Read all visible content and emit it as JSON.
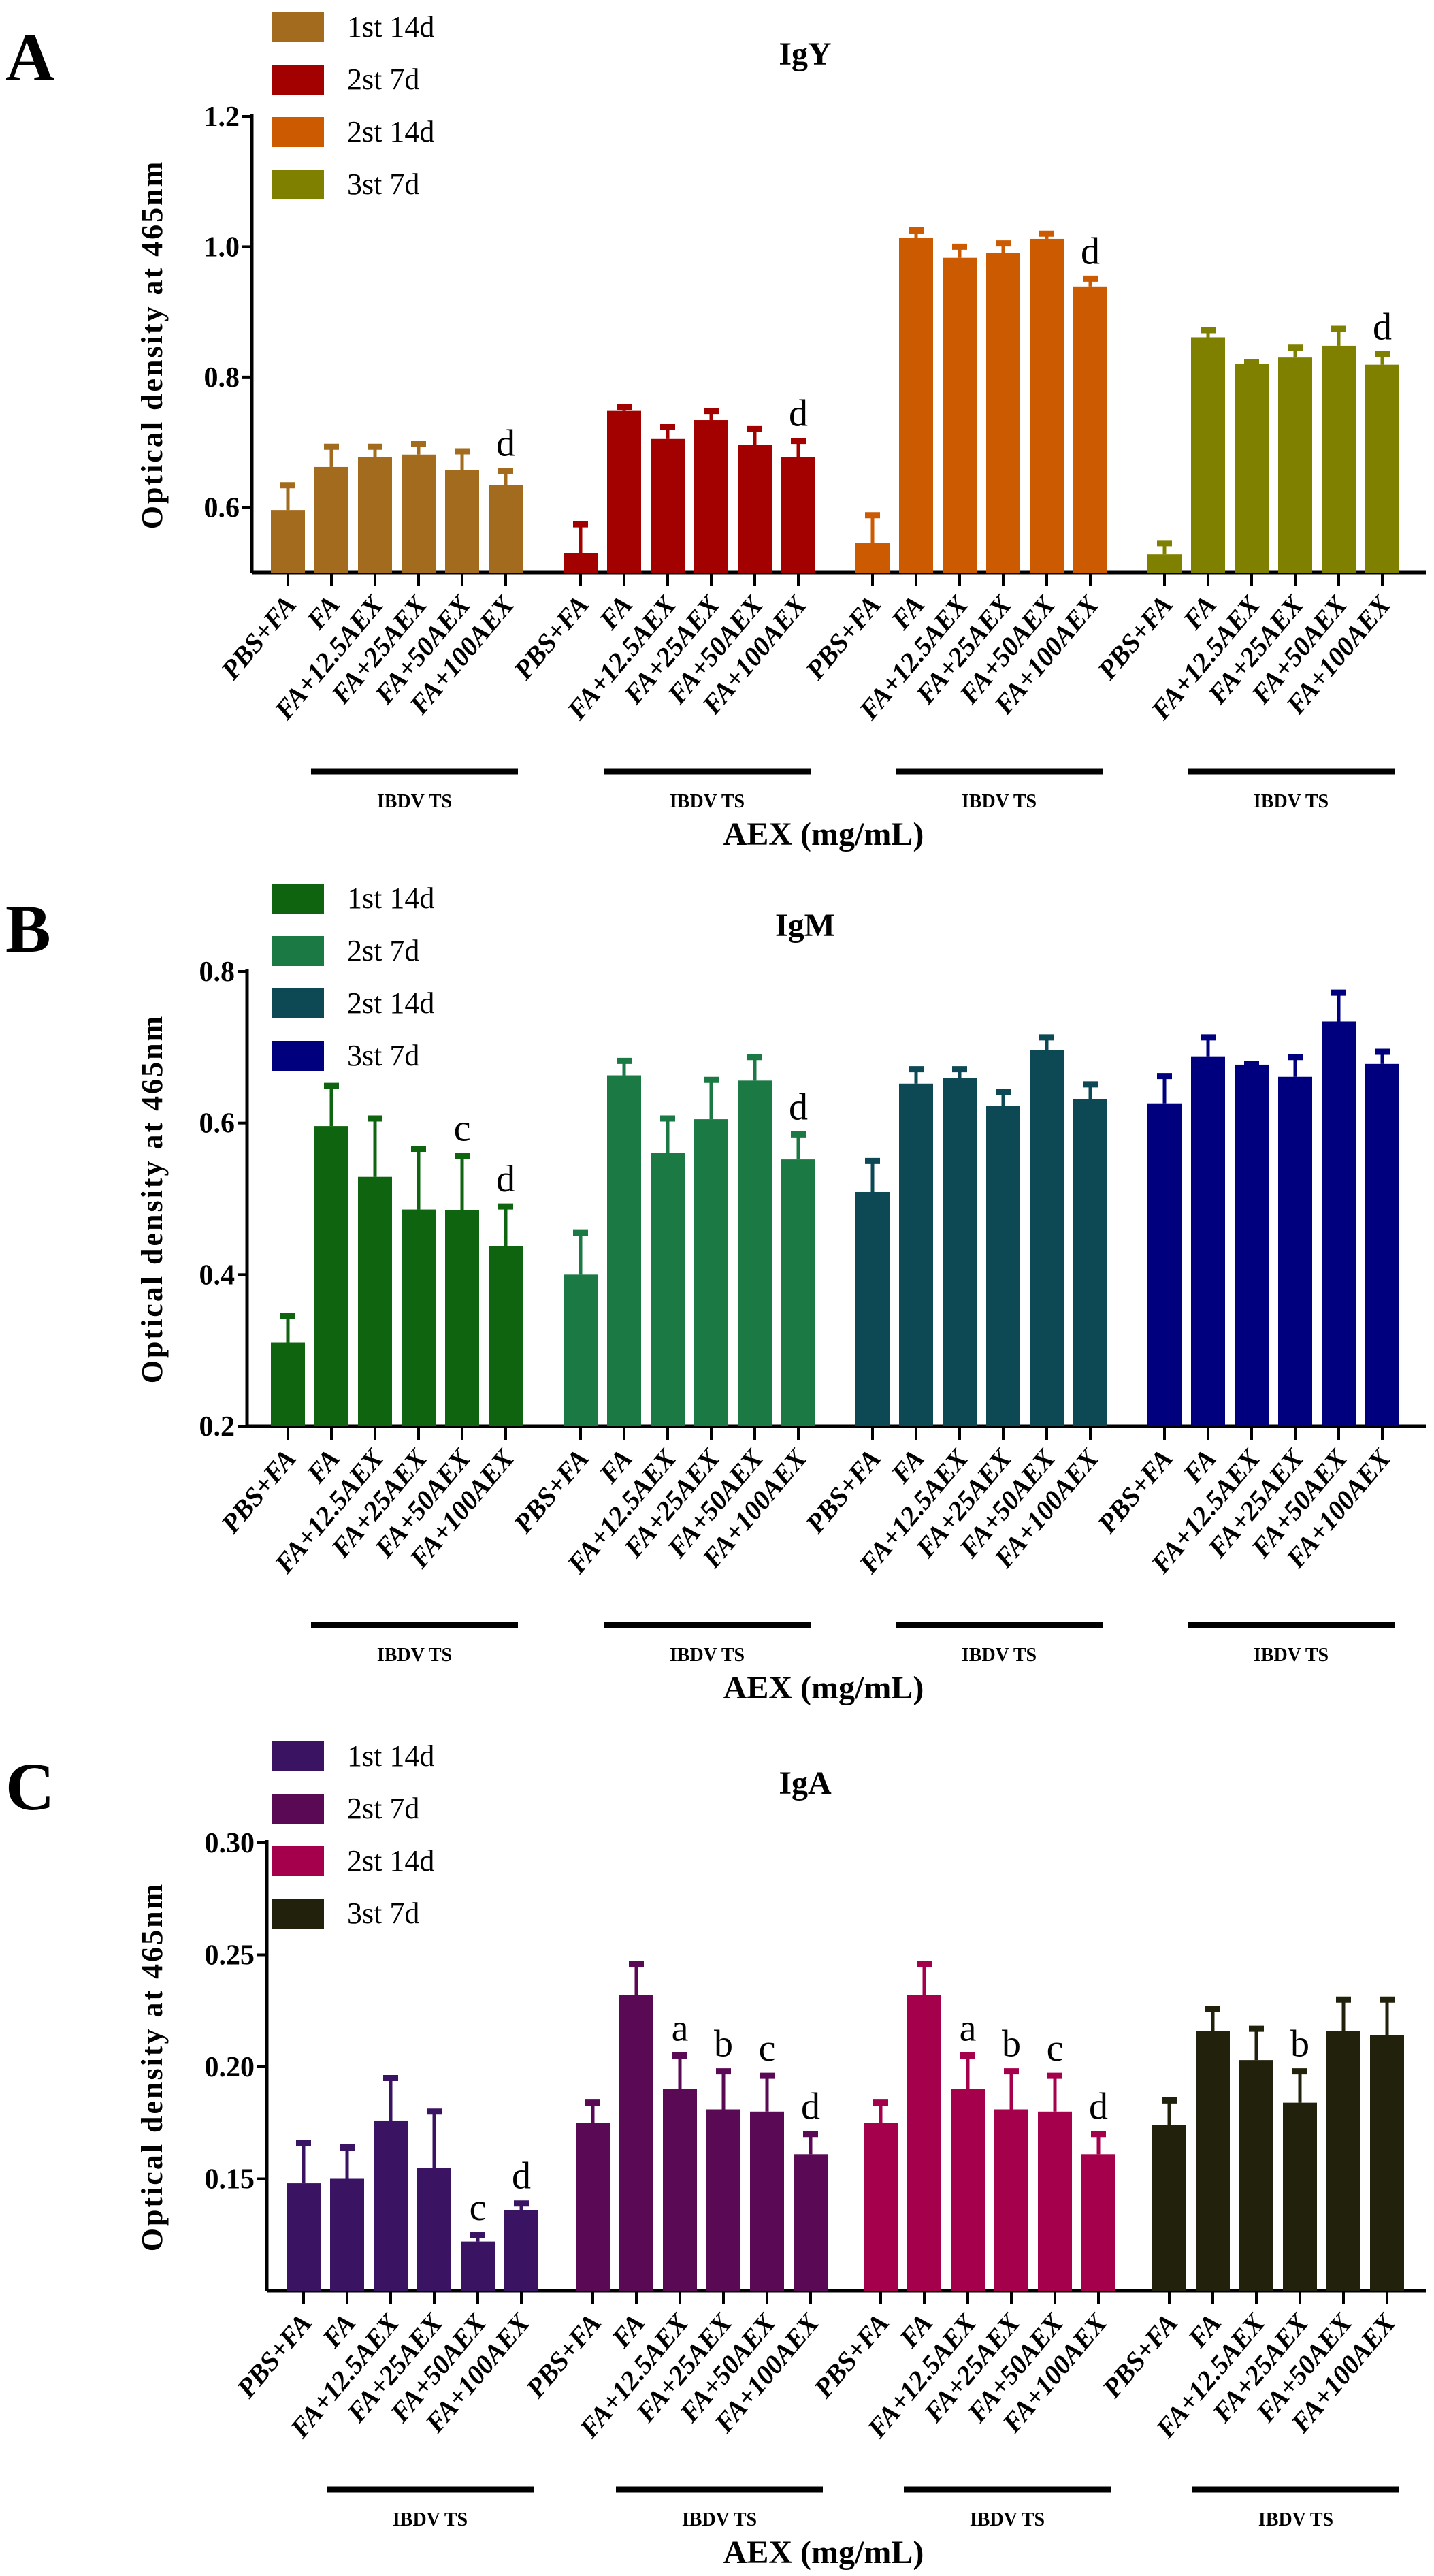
{
  "chart_data": [
    {
      "type": "bar",
      "panel_label": "A",
      "title": "IgY",
      "ylabel": "Optical density at 465nm",
      "xlabel": "AEX (mg/mL)",
      "ylim": [
        0.5,
        1.2
      ],
      "yticks": [
        0.6,
        0.8,
        1.0,
        1.2
      ],
      "ytick_labels": [
        "0.6",
        "0.8",
        "1.0",
        "1.2"
      ],
      "categories": [
        "PBS+FA",
        "FA",
        "FA+12.5AEX",
        "FA+25AEX",
        "FA+50AEX",
        "FA+100AEX"
      ],
      "group_label": "IBDV TS",
      "series": [
        {
          "name": "1st 14d",
          "color": "#a36b1e",
          "values": [
            0.596,
            0.662,
            0.677,
            0.681,
            0.657,
            0.634
          ],
          "errors": [
            0.038,
            0.031,
            0.016,
            0.016,
            0.029,
            0.022
          ]
        },
        {
          "name": "2st 7d",
          "color": "#a30000",
          "values": [
            0.53,
            0.748,
            0.705,
            0.734,
            0.696,
            0.677
          ],
          "errors": [
            0.044,
            0.006,
            0.018,
            0.014,
            0.024,
            0.025
          ]
        },
        {
          "name": "2st 14d",
          "color": "#cc5a00",
          "values": [
            0.545,
            1.014,
            0.983,
            0.991,
            1.012,
            0.939
          ],
          "errors": [
            0.043,
            0.011,
            0.017,
            0.014,
            0.008,
            0.012
          ]
        },
        {
          "name": "3st 7d",
          "color": "#7f7f00",
          "values": [
            0.528,
            0.861,
            0.82,
            0.83,
            0.848,
            0.819
          ],
          "errors": [
            0.017,
            0.011,
            0.003,
            0.015,
            0.026,
            0.016
          ]
        }
      ],
      "annotations": [
        {
          "series": 0,
          "category": 5,
          "text": "d"
        },
        {
          "series": 1,
          "category": 5,
          "text": "d"
        },
        {
          "series": 2,
          "category": 5,
          "text": "d"
        },
        {
          "series": 3,
          "category": 5,
          "text": "d"
        }
      ]
    },
    {
      "type": "bar",
      "panel_label": "B",
      "title": "IgM",
      "ylabel": "Optical density at 465nm",
      "xlabel": "AEX (mg/mL)",
      "ylim": [
        0.2,
        0.8
      ],
      "yticks": [
        0.2,
        0.4,
        0.6,
        0.8
      ],
      "ytick_labels": [
        "0.2",
        "0.4",
        "0.6",
        "0.8"
      ],
      "categories": [
        "PBS+FA",
        "FA",
        "FA+12.5AEX",
        "FA+25AEX",
        "FA+50AEX",
        "FA+100AEX"
      ],
      "group_label": "IBDV TS",
      "series": [
        {
          "name": "1st 14d",
          "color": "#0f640f",
          "values": [
            0.31,
            0.596,
            0.529,
            0.486,
            0.485,
            0.438
          ],
          "errors": [
            0.036,
            0.053,
            0.077,
            0.08,
            0.072,
            0.052
          ]
        },
        {
          "name": "2st 7d",
          "color": "#1b7a44",
          "values": [
            0.4,
            0.663,
            0.561,
            0.605,
            0.656,
            0.552
          ],
          "errors": [
            0.055,
            0.019,
            0.045,
            0.052,
            0.031,
            0.033
          ]
        },
        {
          "name": "2st 14d",
          "color": "#0d4855",
          "values": [
            0.509,
            0.652,
            0.659,
            0.623,
            0.696,
            0.632
          ],
          "errors": [
            0.041,
            0.019,
            0.012,
            0.018,
            0.017,
            0.019
          ]
        },
        {
          "name": "3st 7d",
          "color": "#00007f",
          "values": [
            0.626,
            0.688,
            0.677,
            0.661,
            0.734,
            0.678
          ],
          "errors": [
            0.036,
            0.025,
            0.001,
            0.026,
            0.038,
            0.016
          ]
        }
      ],
      "annotations": [
        {
          "series": 0,
          "category": 4,
          "text": "c"
        },
        {
          "series": 0,
          "category": 5,
          "text": "d"
        },
        {
          "series": 1,
          "category": 5,
          "text": "d"
        }
      ]
    },
    {
      "type": "bar",
      "panel_label": "C",
      "title": "IgA",
      "ylabel": "Optical density at 465nm",
      "xlabel": "AEX (mg/mL)",
      "ylim": [
        0.1,
        0.3
      ],
      "yticks": [
        0.15,
        0.2,
        0.25,
        0.3
      ],
      "ytick_labels": [
        "0.15",
        "0.20",
        "0.25",
        "0.30"
      ],
      "categories": [
        "PBS+FA",
        "FA",
        "FA+12.5AEX",
        "FA+25AEX",
        "FA+50AEX",
        "FA+100AEX"
      ],
      "group_label": "IBDV TS",
      "series": [
        {
          "name": "1st 14d",
          "color": "#3a1462",
          "values": [
            0.148,
            0.15,
            0.176,
            0.155,
            0.122,
            0.136
          ],
          "errors": [
            0.018,
            0.014,
            0.019,
            0.025,
            0.003,
            0.003
          ]
        },
        {
          "name": "2st 7d",
          "color": "#5a0a55",
          "values": [
            0.175,
            0.232,
            0.19,
            0.181,
            0.18,
            0.161
          ],
          "errors": [
            0.009,
            0.014,
            0.015,
            0.017,
            0.016,
            0.009
          ]
        },
        {
          "name": "2st 14d",
          "color": "#a5004c",
          "values": [
            0.175,
            0.232,
            0.19,
            0.181,
            0.18,
            0.161
          ],
          "errors": [
            0.009,
            0.014,
            0.015,
            0.017,
            0.016,
            0.009
          ]
        },
        {
          "name": "3st 7d",
          "color": "#22220c",
          "values": [
            0.174,
            0.216,
            0.203,
            0.184,
            0.216,
            0.214
          ],
          "errors": [
            0.011,
            0.01,
            0.014,
            0.014,
            0.014,
            0.016
          ]
        }
      ],
      "annotations": [
        {
          "series": 0,
          "category": 4,
          "text": "c"
        },
        {
          "series": 0,
          "category": 5,
          "text": "d"
        },
        {
          "series": 1,
          "category": 2,
          "text": "a"
        },
        {
          "series": 1,
          "category": 3,
          "text": "b"
        },
        {
          "series": 1,
          "category": 4,
          "text": "c"
        },
        {
          "series": 1,
          "category": 5,
          "text": "d"
        },
        {
          "series": 2,
          "category": 2,
          "text": "a"
        },
        {
          "series": 2,
          "category": 3,
          "text": "b"
        },
        {
          "series": 2,
          "category": 4,
          "text": "c"
        },
        {
          "series": 2,
          "category": 5,
          "text": "d"
        },
        {
          "series": 3,
          "category": 3,
          "text": "b"
        }
      ]
    }
  ]
}
